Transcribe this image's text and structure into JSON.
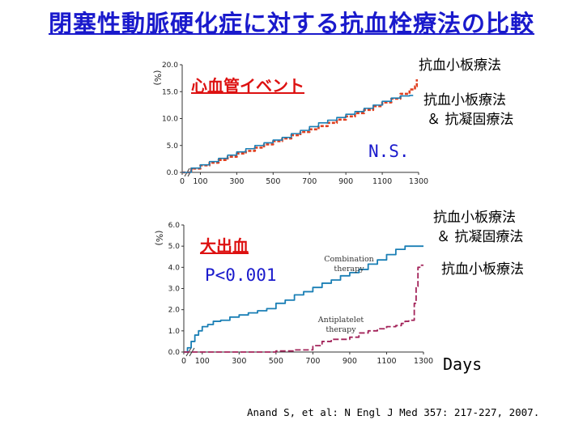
{
  "title": "閉塞性動脈硬化症に対する抗血栓療法の比較",
  "citation": "Anand S, et al: N Engl J Med 357: 217-227, 2007.",
  "colors": {
    "combination": "#1a7fb5",
    "antiplatelet_top": "#e04020",
    "antiplatelet_bottom": "#a3245a",
    "title": "#1a1acc",
    "panel_title": "#dd1111"
  },
  "chart_data": [
    {
      "type": "line",
      "title": "心血管イベント",
      "ylabel": "(%)",
      "xlim": [
        0,
        1300
      ],
      "ylim": [
        0,
        20
      ],
      "xticks": [
        "0",
        "100",
        "300",
        "500",
        "700",
        "900",
        "1100",
        "1300"
      ],
      "yticks": [
        "0.0",
        "5.0",
        "10.0",
        "15.0",
        "20.0"
      ],
      "annotation": "N.S.",
      "labels": {
        "antiplatelet": "抗血小板療法",
        "combination_line1": "抗血小板療法",
        "combination_line2": "＆ 抗凝固療法"
      },
      "series": [
        {
          "key": "antiplatelet",
          "x": [
            0,
            50,
            100,
            150,
            200,
            250,
            300,
            350,
            400,
            450,
            500,
            550,
            600,
            650,
            700,
            750,
            800,
            850,
            900,
            950,
            1000,
            1050,
            1100,
            1150,
            1200,
            1250,
            1280,
            1290
          ],
          "y": [
            0,
            0.7,
            1.3,
            1.8,
            2.3,
            2.9,
            3.5,
            4.0,
            4.6,
            5.2,
            5.8,
            6.3,
            6.9,
            7.5,
            8.0,
            8.6,
            9.2,
            9.8,
            10.4,
            11.0,
            11.6,
            12.3,
            13.0,
            13.7,
            14.6,
            15.4,
            16.0,
            17.3
          ]
        },
        {
          "key": "combination",
          "x": [
            0,
            50,
            100,
            150,
            200,
            250,
            300,
            350,
            400,
            450,
            500,
            550,
            600,
            650,
            700,
            750,
            800,
            850,
            900,
            950,
            1000,
            1050,
            1100,
            1150,
            1200,
            1250,
            1270
          ],
          "y": [
            0,
            0.8,
            1.4,
            2.0,
            2.6,
            3.2,
            3.8,
            4.4,
            5.0,
            5.5,
            6.0,
            6.5,
            7.2,
            7.8,
            8.5,
            9.2,
            9.7,
            10.2,
            10.8,
            11.3,
            11.9,
            12.5,
            13.2,
            13.8,
            14.2,
            14.3,
            14.3
          ]
        }
      ]
    },
    {
      "type": "line",
      "title": "大出血",
      "ylabel": "(%)",
      "xlabel": "Days",
      "xlim": [
        0,
        1300
      ],
      "ylim": [
        0,
        6
      ],
      "xticks": [
        "0",
        "100",
        "300",
        "500",
        "700",
        "900",
        "1100",
        "1300"
      ],
      "yticks": [
        "0.0",
        "1.0",
        "2.0",
        "3.0",
        "4.0",
        "5.0",
        "6.0"
      ],
      "annotation": "P<0.001",
      "inline_labels": {
        "combination_line1": "Combination",
        "combination_line2": "therapy",
        "antiplatelet_line1": "Antiplatelet",
        "antiplatelet_line2": "therapy"
      },
      "labels": {
        "combination_line1": "抗血小板療法",
        "combination_line2": "＆ 抗凝固療法",
        "antiplatelet": "抗血小板療法"
      },
      "series": [
        {
          "key": "combination",
          "x": [
            0,
            20,
            40,
            60,
            80,
            100,
            130,
            160,
            200,
            250,
            300,
            350,
            400,
            450,
            500,
            550,
            600,
            650,
            700,
            750,
            800,
            850,
            900,
            950,
            1000,
            1050,
            1100,
            1150,
            1200,
            1250,
            1300
          ],
          "y": [
            0,
            0.2,
            0.5,
            0.8,
            1.0,
            1.2,
            1.3,
            1.45,
            1.5,
            1.65,
            1.75,
            1.85,
            1.95,
            2.05,
            2.3,
            2.45,
            2.7,
            2.85,
            3.05,
            3.25,
            3.4,
            3.6,
            3.75,
            3.9,
            4.15,
            4.35,
            4.6,
            4.85,
            5.0,
            5.0,
            5.0
          ]
        },
        {
          "key": "antiplatelet",
          "x": [
            0,
            400,
            500,
            600,
            650,
            700,
            750,
            800,
            850,
            900,
            950,
            1000,
            1050,
            1100,
            1150,
            1180,
            1200,
            1220,
            1250,
            1260,
            1270,
            1280,
            1300
          ],
          "y": [
            0,
            0.0,
            0.05,
            0.1,
            0.1,
            0.3,
            0.5,
            0.6,
            0.6,
            0.7,
            0.9,
            1.0,
            1.1,
            1.2,
            1.25,
            1.35,
            1.45,
            1.5,
            2.3,
            3.1,
            4.0,
            4.1,
            4.1
          ]
        }
      ]
    }
  ]
}
